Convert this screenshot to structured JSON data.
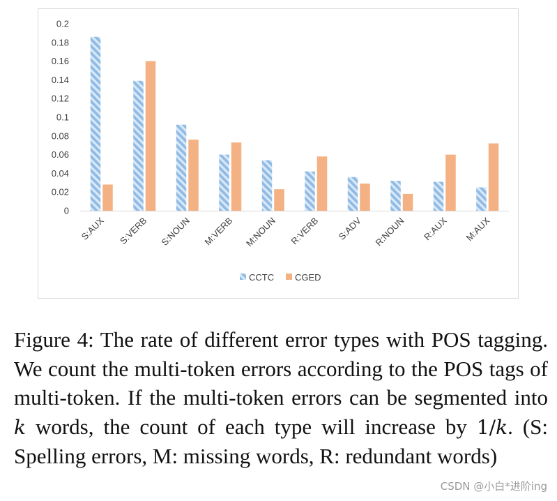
{
  "chart_data": {
    "type": "bar",
    "title": "",
    "xlabel": "",
    "ylabel": "",
    "ylim": [
      0,
      0.2
    ],
    "yticks": [
      "0",
      "0.02",
      "0.04",
      "0.06",
      "0.08",
      "0.1",
      "0.12",
      "0.14",
      "0.16",
      "0.18",
      "0.2"
    ],
    "grid": false,
    "legend_position": "bottom",
    "categories": [
      "S:AUX",
      "S:VERB",
      "S:NOUN",
      "M:VERB",
      "M:NOUN",
      "R:VERB",
      "S:ADV",
      "R:NOUN",
      "R:AUX",
      "M:AUX"
    ],
    "series": [
      {
        "name": "CCTC",
        "color": "#9dc3e6",
        "pattern": "diagonal-hatch",
        "values": [
          0.186,
          0.139,
          0.092,
          0.06,
          0.054,
          0.042,
          0.036,
          0.032,
          0.031,
          0.025
        ]
      },
      {
        "name": "CGED",
        "color": "#f4b183",
        "pattern": "solid",
        "values": [
          0.028,
          0.16,
          0.076,
          0.073,
          0.023,
          0.058,
          0.029,
          0.018,
          0.06,
          0.072
        ]
      }
    ]
  },
  "caption": {
    "p1": "Figure 4: The rate of different error types with POS tagging. We count the multi-token errors according to the POS tags of multi-token. If the multi-token errors can be segmented into ",
    "k": "k",
    "p2": " words, the count of each type will increase by ",
    "frac": "1/",
    "k2": "k",
    "p3": ". (S: Spelling errors, M: missing words, R: redundant words)"
  },
  "watermark": "CSDN @小白*进阶ing"
}
